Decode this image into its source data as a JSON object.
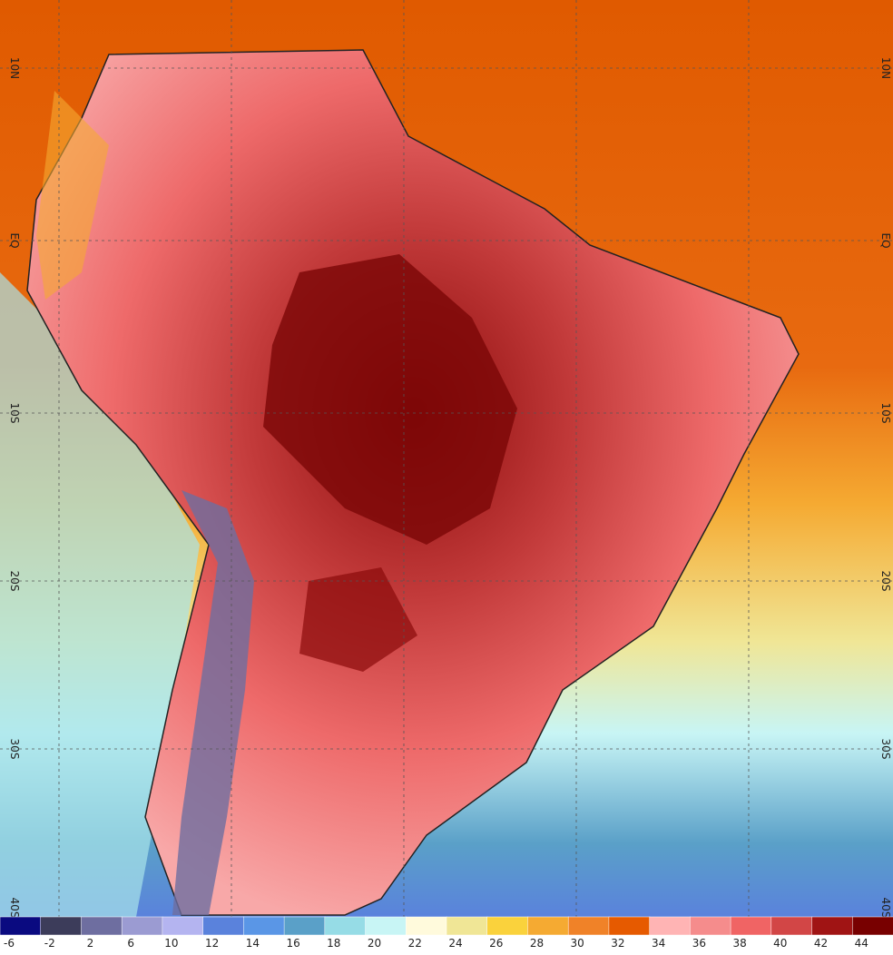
{
  "map": {
    "lat_labels": [
      "10N",
      "EQ",
      "10S",
      "20S",
      "30S",
      "40S"
    ],
    "legend": {
      "labels": [
        "-6",
        "-2",
        "2",
        "6",
        "10",
        "12",
        "14",
        "16",
        "18",
        "20",
        "22",
        "24",
        "26",
        "28",
        "30",
        "32",
        "34",
        "36",
        "38",
        "40",
        "42",
        "44"
      ],
      "colors": [
        "#0a0a80",
        "#3c3c5a",
        "#6e6ea0",
        "#9b9bd2",
        "#b4b4f0",
        "#5a82dc",
        "#5a96e6",
        "#5aa0c8",
        "#96dce6",
        "#c8f5f5",
        "#fffadc",
        "#f0e696",
        "#fad23c",
        "#f5aa32",
        "#f08228",
        "#e65a00",
        "#ffb4b4",
        "#f58c8c",
        "#f06464",
        "#d24646",
        "#a01414",
        "#780000"
      ]
    }
  }
}
